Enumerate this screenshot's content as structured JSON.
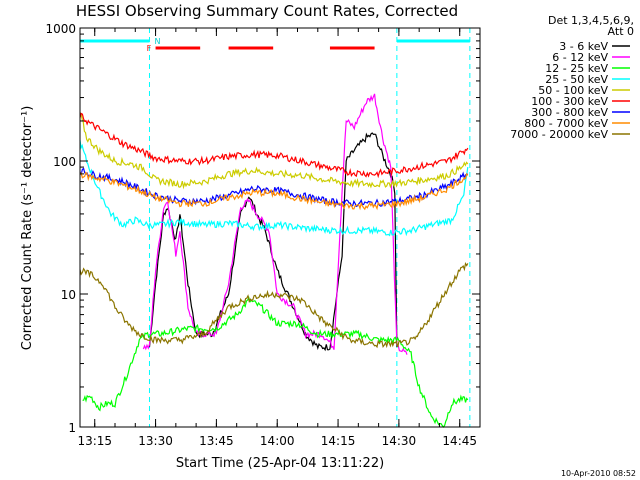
{
  "title": "HESSI Observing Summary Count Rates, Corrected",
  "chart_data": {
    "type": "line",
    "title": "HESSI Observing Summary Count Rates, Corrected",
    "xlabel": "Start Time (25-Apr-04 13:11:22)",
    "ylabel": "Corrected Count Rate (s⁻¹ detector⁻¹)",
    "y_scale": "log",
    "ylim": [
      1,
      1000
    ],
    "y_ticks": [
      "1",
      "10",
      "100",
      "1000"
    ],
    "xlim": [
      "13:11:22",
      "14:50:00"
    ],
    "x_ticks": [
      "13:15",
      "13:30",
      "13:45",
      "14:00",
      "14:15",
      "14:30",
      "14:45"
    ],
    "legend_position": "right",
    "legend_header": [
      "Det 1,3,4,5,6,9,",
      "Att 0"
    ],
    "timestamp": "10-Apr-2010 08:52",
    "markers": {
      "N_label": "N",
      "F_label": "F",
      "cyan_bars": [
        [
          "13:11:22",
          "13:28:30"
        ],
        [
          "14:29:30",
          "14:47:30"
        ]
      ],
      "cyan_dashed": [
        "13:28:30",
        "14:29:30",
        "14:47:30"
      ],
      "red_bars": [
        [
          "13:30:00",
          "13:41:00"
        ],
        [
          "13:48:00",
          "13:59:00"
        ],
        [
          "14:13:00",
          "14:24:00"
        ]
      ]
    },
    "series": [
      {
        "name": "3 - 6 keV",
        "color": "#000000",
        "points": [
          [
            "13:28:30",
            4
          ],
          [
            "13:30",
            12
          ],
          [
            "13:32",
            40
          ],
          [
            "13:33",
            45
          ],
          [
            "13:35",
            25
          ],
          [
            "13:36",
            40
          ],
          [
            "13:38",
            12
          ],
          [
            "13:40",
            5
          ],
          [
            "13:44",
            5
          ],
          [
            "13:48",
            10
          ],
          [
            "13:51",
            40
          ],
          [
            "13:53",
            55
          ],
          [
            "13:55",
            40
          ],
          [
            "13:57",
            30
          ],
          [
            "14:00",
            15
          ],
          [
            "14:04",
            8
          ],
          [
            "14:07",
            5
          ],
          [
            "14:10",
            4
          ],
          [
            "14:13",
            4
          ],
          [
            "14:16",
            20
          ],
          [
            "14:17",
            100
          ],
          [
            "14:19",
            120
          ],
          [
            "14:22",
            150
          ],
          [
            "14:24",
            160
          ],
          [
            "14:26",
            110
          ],
          [
            "14:28",
            80
          ],
          [
            "14:29",
            60
          ],
          [
            "14:29:30",
            4
          ]
        ]
      },
      {
        "name": "6 - 12 keV",
        "color": "#ff00ff",
        "points": [
          [
            "13:27",
            4
          ],
          [
            "13:28:30",
            4
          ],
          [
            "13:30",
            15
          ],
          [
            "13:32",
            45
          ],
          [
            "13:33",
            50
          ],
          [
            "13:35",
            20
          ],
          [
            "13:36",
            30
          ],
          [
            "13:38",
            8
          ],
          [
            "13:40",
            5
          ],
          [
            "13:45",
            5
          ],
          [
            "13:48",
            12
          ],
          [
            "13:51",
            45
          ],
          [
            "13:53",
            50
          ],
          [
            "13:55",
            40
          ],
          [
            "13:58",
            30
          ],
          [
            "14:00",
            10
          ],
          [
            "14:04",
            8
          ],
          [
            "14:07",
            5
          ],
          [
            "14:11",
            5
          ],
          [
            "14:14",
            4
          ],
          [
            "14:16",
            60
          ],
          [
            "14:17",
            200
          ],
          [
            "14:19",
            180
          ],
          [
            "14:22",
            280
          ],
          [
            "14:24",
            310
          ],
          [
            "14:26",
            150
          ],
          [
            "14:28",
            90
          ],
          [
            "14:29:30",
            4
          ],
          [
            "14:32",
            3.5
          ]
        ]
      },
      {
        "name": "12 - 25 keV",
        "color": "#00ff00",
        "points": [
          [
            "13:12",
            1.6
          ],
          [
            "13:14",
            1.7
          ],
          [
            "13:16",
            1.4
          ],
          [
            "13:18",
            1.5
          ],
          [
            "13:20",
            1.5
          ],
          [
            "13:23",
            2.5
          ],
          [
            "13:26",
            4.5
          ],
          [
            "13:28",
            5
          ],
          [
            "13:31",
            5
          ],
          [
            "13:38",
            5.5
          ],
          [
            "13:45",
            5.5
          ],
          [
            "13:50",
            7
          ],
          [
            "13:53",
            9
          ],
          [
            "13:56",
            8
          ],
          [
            "14:00",
            6
          ],
          [
            "14:05",
            6
          ],
          [
            "14:10",
            5
          ],
          [
            "14:15",
            5
          ],
          [
            "14:20",
            5
          ],
          [
            "14:25",
            4.5
          ],
          [
            "14:30",
            4.5
          ],
          [
            "14:33",
            3.5
          ],
          [
            "14:35",
            2
          ],
          [
            "14:38",
            1.2
          ],
          [
            "14:41",
            1.0
          ],
          [
            "14:43",
            1.5
          ],
          [
            "14:45",
            1.6
          ],
          [
            "14:47",
            1.6
          ]
        ]
      },
      {
        "name": "25 - 50 keV",
        "color": "#00ffff",
        "points": [
          [
            "13:11:22",
            140
          ],
          [
            "13:13",
            100
          ],
          [
            "13:16",
            60
          ],
          [
            "13:19",
            40
          ],
          [
            "13:22",
            33
          ],
          [
            "13:25",
            36
          ],
          [
            "13:28",
            33
          ],
          [
            "13:31",
            33
          ],
          [
            "13:36",
            35
          ],
          [
            "13:42",
            33
          ],
          [
            "13:48",
            34
          ],
          [
            "13:55",
            32
          ],
          [
            "14:00",
            33
          ],
          [
            "14:08",
            31
          ],
          [
            "14:15",
            30
          ],
          [
            "14:22",
            30
          ],
          [
            "14:28",
            29
          ],
          [
            "14:33",
            30
          ],
          [
            "14:38",
            33
          ],
          [
            "14:43",
            36
          ],
          [
            "14:46",
            55
          ],
          [
            "14:47",
            90
          ]
        ]
      },
      {
        "name": "50 - 100 keV",
        "color": "#cccc00",
        "points": [
          [
            "13:11:22",
            230
          ],
          [
            "13:13",
            150
          ],
          [
            "13:16",
            120
          ],
          [
            "13:20",
            100
          ],
          [
            "13:24",
            95
          ],
          [
            "13:27",
            88
          ],
          [
            "13:30",
            72
          ],
          [
            "13:36",
            67
          ],
          [
            "13:42",
            70
          ],
          [
            "13:48",
            80
          ],
          [
            "13:54",
            85
          ],
          [
            "14:00",
            80
          ],
          [
            "14:06",
            78
          ],
          [
            "14:12",
            72
          ],
          [
            "14:18",
            68
          ],
          [
            "14:24",
            67
          ],
          [
            "14:30",
            68
          ],
          [
            "14:36",
            72
          ],
          [
            "14:42",
            78
          ],
          [
            "14:47",
            95
          ]
        ]
      },
      {
        "name": "100 - 300 keV",
        "color": "#ff0000",
        "points": [
          [
            "13:11:22",
            220
          ],
          [
            "13:14",
            190
          ],
          [
            "13:18",
            160
          ],
          [
            "13:22",
            135
          ],
          [
            "13:26",
            120
          ],
          [
            "13:30",
            105
          ],
          [
            "13:36",
            100
          ],
          [
            "13:42",
            100
          ],
          [
            "13:48",
            108
          ],
          [
            "13:54",
            112
          ],
          [
            "14:00",
            110
          ],
          [
            "14:06",
            100
          ],
          [
            "14:12",
            90
          ],
          [
            "14:18",
            82
          ],
          [
            "14:24",
            80
          ],
          [
            "14:30",
            85
          ],
          [
            "14:36",
            92
          ],
          [
            "14:42",
            100
          ],
          [
            "14:47",
            125
          ]
        ]
      },
      {
        "name": "300 - 800 keV",
        "color": "#0000ff",
        "points": [
          [
            "13:11:22",
            85
          ],
          [
            "13:14",
            80
          ],
          [
            "13:18",
            75
          ],
          [
            "13:22",
            70
          ],
          [
            "13:26",
            62
          ],
          [
            "13:30",
            55
          ],
          [
            "13:36",
            50
          ],
          [
            "13:42",
            50
          ],
          [
            "13:48",
            55
          ],
          [
            "13:54",
            62
          ],
          [
            "14:00",
            60
          ],
          [
            "14:06",
            55
          ],
          [
            "14:12",
            50
          ],
          [
            "14:18",
            48
          ],
          [
            "14:24",
            48
          ],
          [
            "14:30",
            50
          ],
          [
            "14:36",
            55
          ],
          [
            "14:42",
            65
          ],
          [
            "14:47",
            80
          ]
        ]
      },
      {
        "name": "800 - 7000 keV",
        "color": "#ff8c00",
        "points": [
          [
            "13:11:22",
            80
          ],
          [
            "13:14",
            76
          ],
          [
            "13:18",
            72
          ],
          [
            "13:22",
            66
          ],
          [
            "13:26",
            60
          ],
          [
            "13:30",
            53
          ],
          [
            "13:36",
            48
          ],
          [
            "13:42",
            48
          ],
          [
            "13:48",
            53
          ],
          [
            "13:54",
            58
          ],
          [
            "14:00",
            57
          ],
          [
            "14:06",
            52
          ],
          [
            "14:12",
            48
          ],
          [
            "14:18",
            46
          ],
          [
            "14:24",
            46
          ],
          [
            "14:30",
            48
          ],
          [
            "14:36",
            53
          ],
          [
            "14:42",
            62
          ],
          [
            "14:47",
            78
          ]
        ]
      },
      {
        "name": "7000 - 20000 keV",
        "color": "#8b7500",
        "points": [
          [
            "13:11:22",
            15
          ],
          [
            "13:14",
            14
          ],
          [
            "13:17",
            12
          ],
          [
            "13:20",
            8
          ],
          [
            "13:23",
            6
          ],
          [
            "13:26",
            5
          ],
          [
            "13:30",
            4.5
          ],
          [
            "13:36",
            4.5
          ],
          [
            "13:42",
            5
          ],
          [
            "13:48",
            8
          ],
          [
            "13:54",
            9.5
          ],
          [
            "14:00",
            10
          ],
          [
            "14:06",
            9
          ],
          [
            "14:12",
            6
          ],
          [
            "14:18",
            4.5
          ],
          [
            "14:24",
            4.2
          ],
          [
            "14:30",
            4.2
          ],
          [
            "14:34",
            4.5
          ],
          [
            "14:38",
            7
          ],
          [
            "14:42",
            11
          ],
          [
            "14:45",
            15
          ],
          [
            "14:47",
            17
          ]
        ]
      }
    ]
  }
}
